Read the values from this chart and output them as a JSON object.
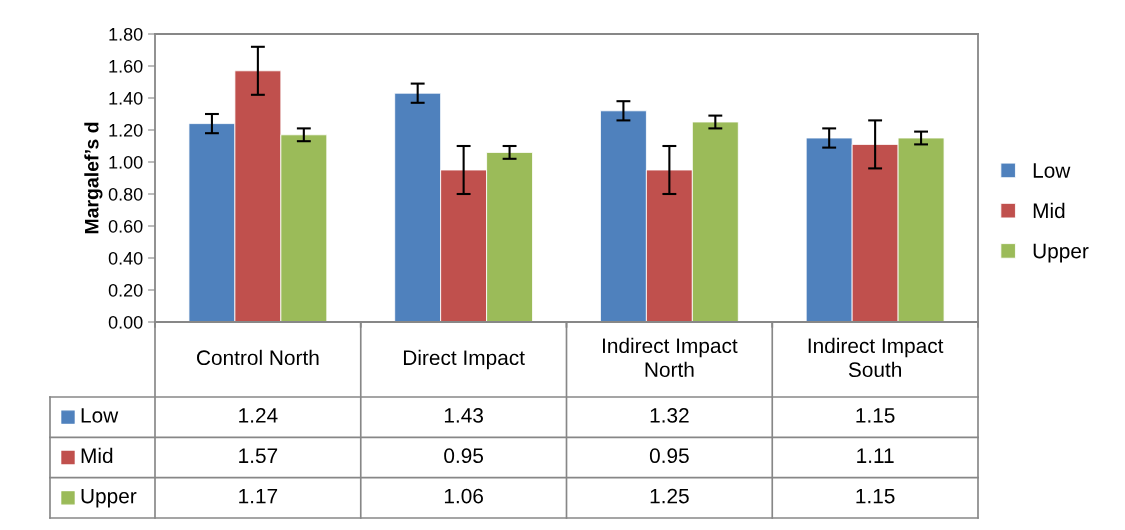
{
  "chart_data": {
    "type": "bar",
    "ylabel": "Margalef’s d",
    "categories": [
      "Control North",
      "Direct Impact",
      "Indirect Impact North",
      "Indirect Impact South"
    ],
    "series": [
      {
        "name": "Low",
        "color": "#4f81bd",
        "values": [
          1.24,
          1.43,
          1.32,
          1.15
        ],
        "errors": [
          0.06,
          0.06,
          0.06,
          0.06
        ]
      },
      {
        "name": "Mid",
        "color": "#c0504d",
        "values": [
          1.57,
          0.95,
          0.95,
          1.11
        ],
        "errors": [
          0.15,
          0.15,
          0.15,
          0.15
        ]
      },
      {
        "name": "Upper",
        "color": "#9bbb59",
        "values": [
          1.17,
          1.06,
          1.25,
          1.15
        ],
        "errors": [
          0.04,
          0.04,
          0.04,
          0.04
        ]
      }
    ],
    "ylim": [
      0,
      1.8
    ],
    "yticks": [
      {
        "value": 0,
        "label": "0.00"
      },
      {
        "value": 0.2,
        "label": "0.20"
      },
      {
        "value": 0.4,
        "label": "0.40"
      },
      {
        "value": 0.6,
        "label": "0.60"
      },
      {
        "value": 0.8,
        "label": "0.80"
      },
      {
        "value": 1.0,
        "label": "1.00"
      },
      {
        "value": 1.2,
        "label": "1.20"
      },
      {
        "value": 1.4,
        "label": "1.40"
      },
      {
        "value": 1.6,
        "label": "1.60"
      },
      {
        "value": 1.8,
        "label": "1.80"
      }
    ],
    "grid": false,
    "legend": "right",
    "data_labels": true
  }
}
